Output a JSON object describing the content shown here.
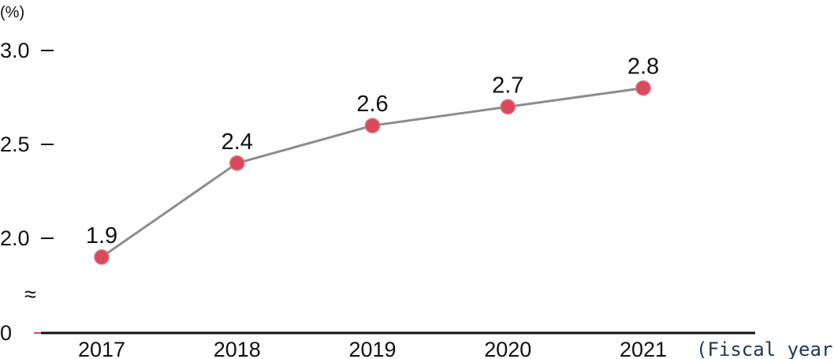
{
  "chart_data": {
    "type": "line",
    "unit_label": "(%)",
    "xlabel": "(Fiscal year)",
    "ylabel": "",
    "categories": [
      "2017",
      "2018",
      "2019",
      "2020",
      "2021"
    ],
    "values": [
      1.9,
      2.4,
      2.6,
      2.7,
      2.8
    ],
    "data_labels": [
      "1.9",
      "2.4",
      "2.6",
      "2.7",
      "2.8"
    ],
    "yticks": [
      {
        "value": 2.0,
        "label": "2.0"
      },
      {
        "value": 2.5,
        "label": "2.5"
      },
      {
        "value": 3.0,
        "label": "3.0"
      }
    ],
    "baseline_label": "0",
    "axis_break_symbol": "≈",
    "ylim": [
      2.0,
      3.0
    ],
    "axis_break": true,
    "grid": false,
    "legend": "none",
    "colors": {
      "line": "#8c8c8c",
      "marker": "#d94a5c",
      "axis": "#111111"
    }
  }
}
